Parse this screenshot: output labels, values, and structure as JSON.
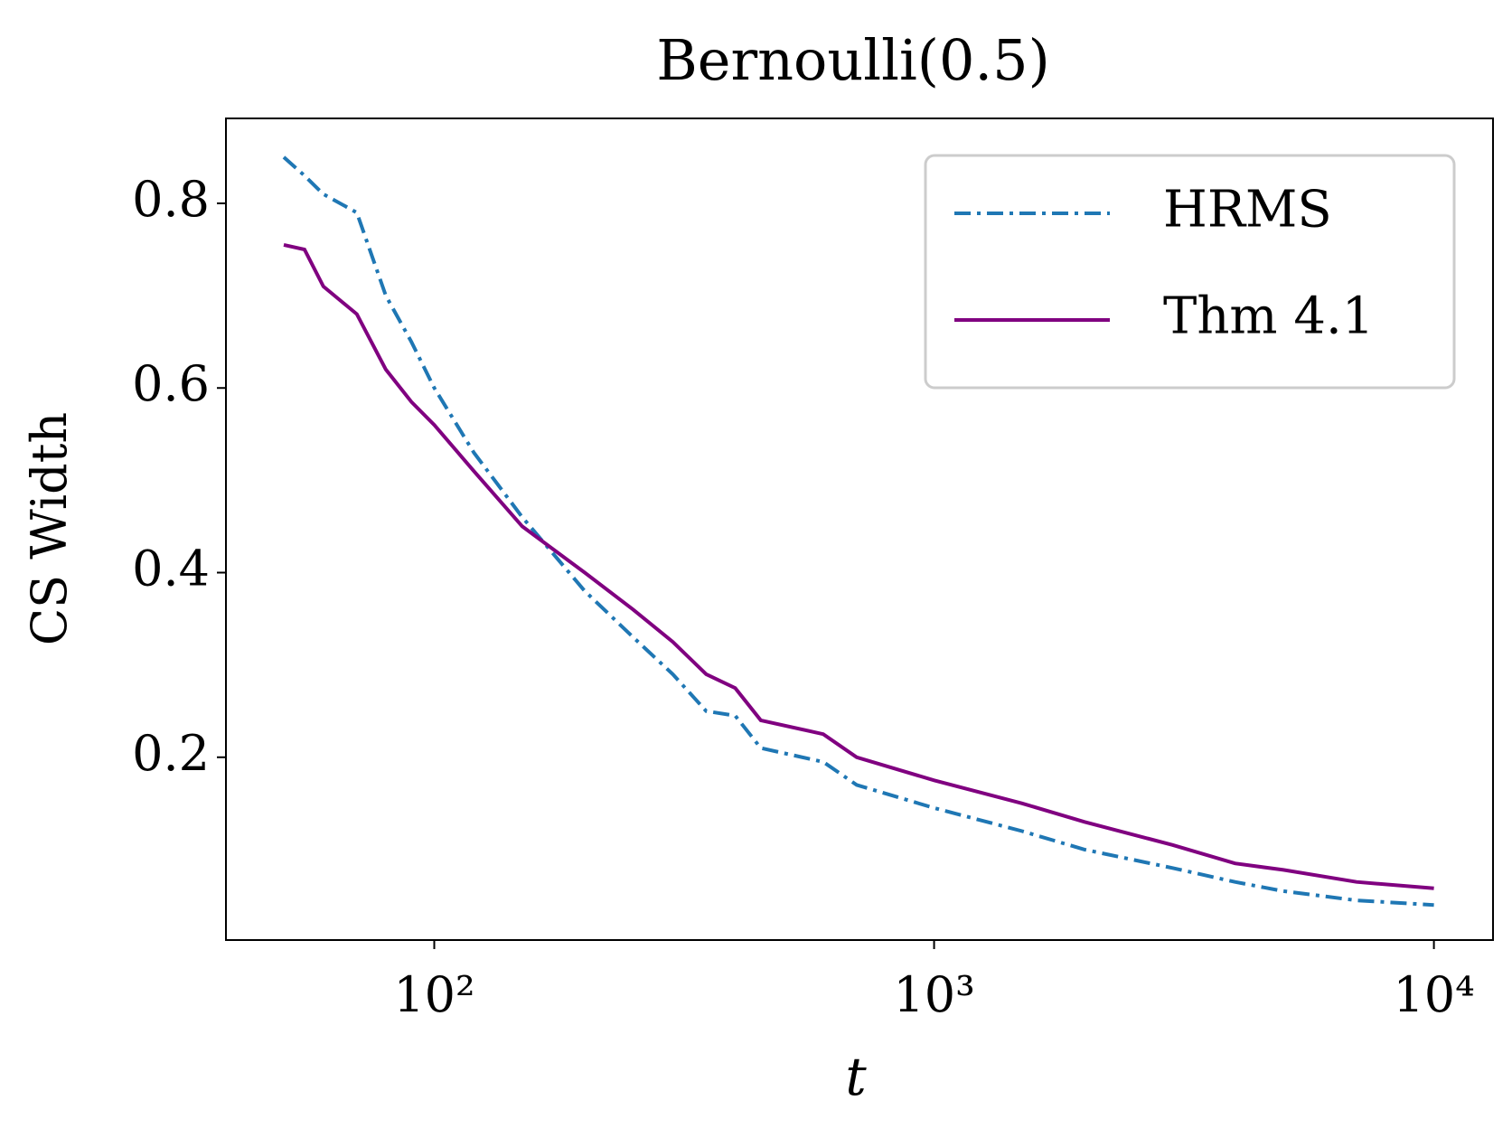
{
  "chart_data": {
    "type": "line",
    "title": "Bernoulli(0.5)",
    "xlabel": "t",
    "ylabel": "CS Width",
    "xscale": "log",
    "xlim": [
      38.3,
      13130
    ],
    "ylim": [
      0.002,
      0.892
    ],
    "xticks": [
      {
        "value": 100,
        "label": "10²"
      },
      {
        "value": 1000,
        "label": "10³"
      },
      {
        "value": 10000,
        "label": "10⁴"
      }
    ],
    "yticks": [
      0.2,
      0.4,
      0.6,
      0.8
    ],
    "legend": "upper right",
    "x": [
      50,
      55,
      60,
      70,
      80,
      90,
      100,
      120,
      150,
      200,
      250,
      300,
      350,
      400,
      450,
      600,
      700,
      1000,
      1500,
      2000,
      3000,
      4000,
      5000,
      7000,
      10000
    ],
    "series": [
      {
        "name": "HRMS",
        "color": "#1f77b4",
        "linestyle": "dashdot",
        "values": [
          0.85,
          0.83,
          0.81,
          0.79,
          0.7,
          0.65,
          0.6,
          0.53,
          0.46,
          0.38,
          0.33,
          0.29,
          0.25,
          0.245,
          0.21,
          0.195,
          0.17,
          0.145,
          0.12,
          0.1,
          0.08,
          0.065,
          0.055,
          0.045,
          0.04
        ]
      },
      {
        "name": "Thm 4.1",
        "color": "#800080",
        "linestyle": "solid",
        "values": [
          0.755,
          0.75,
          0.71,
          0.68,
          0.62,
          0.585,
          0.56,
          0.51,
          0.45,
          0.4,
          0.36,
          0.325,
          0.29,
          0.275,
          0.24,
          0.225,
          0.2,
          0.175,
          0.15,
          0.13,
          0.105,
          0.085,
          0.078,
          0.065,
          0.058
        ]
      }
    ]
  }
}
